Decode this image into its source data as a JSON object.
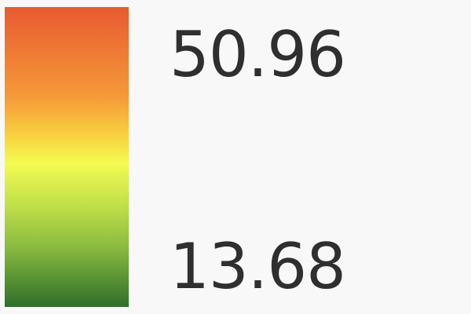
{
  "legend": {
    "max_label": "50.96",
    "min_label": "13.68",
    "color_stops": [
      "#e85a30",
      "#f59a38",
      "#f7d23f",
      "#f4fb52",
      "#c0e04a",
      "#8bbb3f",
      "#2e6f2b"
    ]
  }
}
